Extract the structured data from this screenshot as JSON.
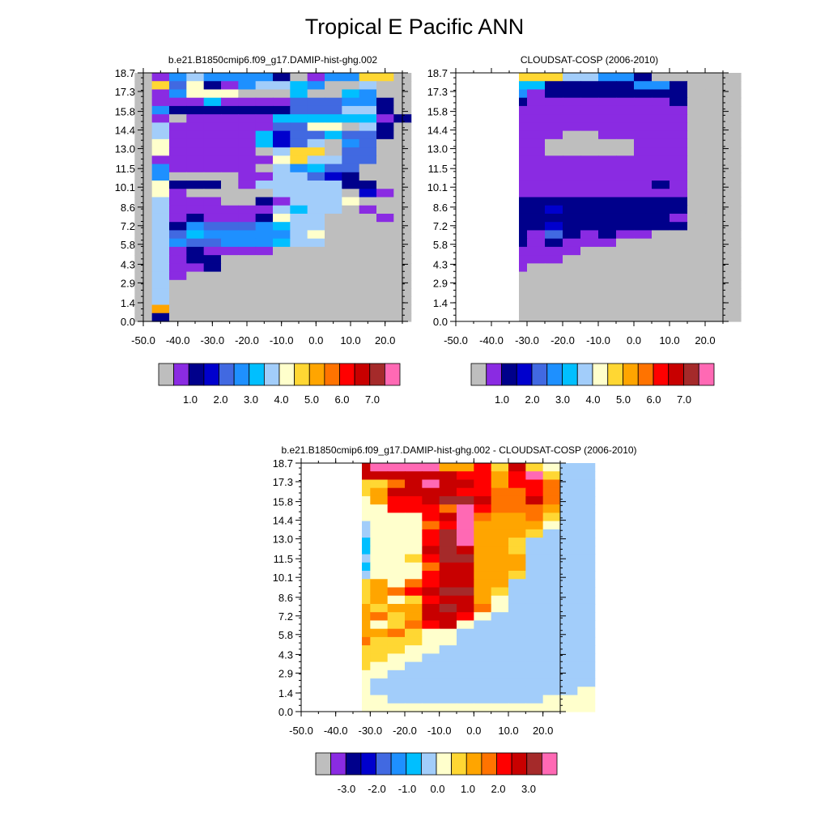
{
  "figure": {
    "title": "Tropical E Pacific ANN"
  },
  "palettes": {
    "main": [
      "#BEBEBE",
      "#8A2BE2",
      "#00008B",
      "#0000CD",
      "#4169E1",
      "#1E90FF",
      "#00BFFF",
      "#A2CDFA",
      "#FFFFCC",
      "#FFD733",
      "#FFA500",
      "#FF7300",
      "#FF0000",
      "#C80000",
      "#A52A2A",
      "#FF69B4"
    ],
    "diff": [
      "#BEBEBE",
      "#8A2BE2",
      "#00008B",
      "#0000CD",
      "#4169E1",
      "#1E90FF",
      "#00BFFF",
      "#A2CDFA",
      "#FFFFCC",
      "#FFD733",
      "#FFA500",
      "#FF7300",
      "#FF0000",
      "#C80000",
      "#A52A2A",
      "#FF69B4"
    ]
  },
  "colorbars": [
    {
      "labels": [
        "1.0",
        "2.0",
        "3.0",
        "4.0",
        "5.0",
        "6.0",
        "7.0"
      ]
    },
    {
      "labels": [
        "1.0",
        "2.0",
        "3.0",
        "4.0",
        "5.0",
        "6.0",
        "7.0"
      ]
    },
    {
      "labels": [
        "-3.0",
        "-2.0",
        "-1.0",
        "0.0",
        "1.0",
        "2.0",
        "3.0"
      ]
    }
  ],
  "chart_data": [
    {
      "type": "heatmap",
      "title": "b.e21.B1850cmip6.f09_g17.DAMIP-hist-ghg.002",
      "x_ticks": [
        "-50.0",
        "-40.0",
        "-30.0",
        "-20.0",
        "-10.0",
        "0.0",
        "10.0",
        "20.0"
      ],
      "y_ticks": [
        "0.0",
        "1.4",
        "2.9",
        "4.3",
        "5.8",
        "7.2",
        "8.6",
        "10.1",
        "11.5",
        "13.0",
        "14.4",
        "15.8",
        "17.3",
        "18.7"
      ],
      "xlim": [
        -50,
        25
      ],
      "ylim": [
        0,
        18.7
      ],
      "x_columns": [
        -50,
        -45,
        -40,
        -35,
        -30,
        -25,
        -20,
        -15,
        -10,
        -5,
        0,
        5,
        10,
        15,
        20,
        25
      ],
      "y_rows": [
        0,
        0.6,
        1.2,
        1.8,
        2.4,
        3.0,
        3.6,
        4.3,
        5.0,
        5.6,
        6.2,
        6.8,
        7.5,
        8.1,
        8.7,
        9.3,
        9.9,
        10.6,
        11.2,
        11.8,
        12.4,
        13.1,
        13.7,
        14.3,
        14.9,
        15.6,
        16.2,
        16.8,
        17.4,
        18.1,
        18.7
      ],
      "cell_color_index": [
        "-15755552015599-",
        "-9482157765007--",
        "-15888000600650-",
        "-11161111444552-",
        "-52222222444772-",
        "-101111166666612",
        "-71111114488072-",
        "-71111163446442-",
        "-8111116347054--",
        "-8111110799044--",
        "-1111111897744--",
        "-511111-75644---",
        "-500--1177432---",
        "-8222-17777722--",
        "-81-----7777-31-",
        "-7111--217778---",
        "-71111117677-1--",
        "-7121112877---1-",
        "-7254445677-----",
        "-7465555578-----",
        "-7544555677-----",
        "-7121111--------",
        "-7122-----------",
        "-7112-----------",
        "-71-------------",
        "-7--------------",
        "-7--------------",
        "-7--------------",
        "-A--------------",
        "-2--------------"
      ]
    },
    {
      "type": "heatmap",
      "title": "CLOUDSAT-COSP (2006-2010)",
      "x_ticks": [
        "-50.0",
        "-40.0",
        "-30.0",
        "-20.0",
        "-10.0",
        "0.0",
        "10.0",
        "20.0"
      ],
      "y_ticks": [
        "0.0",
        "1.4",
        "2.9",
        "4.3",
        "5.8",
        "7.2",
        "8.6",
        "10.1",
        "11.5",
        "13.0",
        "14.4",
        "15.8",
        "17.3",
        "18.7"
      ],
      "xlim": [
        -50,
        25
      ],
      "ylim": [
        0,
        18.7
      ],
      "x_columns": [
        -50,
        -45,
        -40,
        -35,
        -30,
        -25,
        -20,
        -15,
        -10,
        -5,
        0,
        5,
        10,
        15,
        20,
        25
      ],
      "y_rows": [
        0,
        0.6,
        1.2,
        1.8,
        2.4,
        3.0,
        3.6,
        4.3,
        5.0,
        5.6,
        6.2,
        6.8,
        7.5,
        8.1,
        8.7,
        9.3,
        9.9,
        10.6,
        11.2,
        11.8,
        12.4,
        13.1,
        13.7,
        14.3,
        14.9,
        15.6,
        16.2,
        16.8,
        17.4,
        18.1,
        18.7
      ],
      "cell_color_index": [
        "   99977552-----",
        "   6622222552---",
        "   5122222222---",
        "   2111111112---",
        "   1111111111---",
        "   1111111111---",
        "   1111111111---",
        "   1110011111---",
        "   1100000111---",
        "   1100000111---",
        "   1111111111---",
        "   1111111111---",
        "   1111111111---",
        "   1111111121---",
        "   1111111111---",
        "   2222222222---",
        "   2232222222---",
        "   2222222221---",
        "   2232222222---",
        "   21421211-----",
        "   212111-------",
        "   1111---------",
        "   111----------",
        "   1------------",
        "   -------------",
        "   -------------",
        "   -------------",
        "   -------------",
        "   -------------",
        "   -------------"
      ]
    },
    {
      "type": "heatmap",
      "title": "b.e21.B1850cmip6.f09_g17.DAMIP-hist-ghg.002 - CLOUDSAT-COSP (2006-2010)",
      "x_ticks": [
        "-50.0",
        "-40.0",
        "-30.0",
        "-20.0",
        "-10.0",
        "0.0",
        "10.0",
        "20.0"
      ],
      "y_ticks": [
        "0.0",
        "1.4",
        "2.9",
        "4.3",
        "5.8",
        "7.2",
        "8.6",
        "10.1",
        "11.5",
        "13.0",
        "14.4",
        "15.8",
        "17.3",
        "18.7"
      ],
      "xlim": [
        -50,
        25
      ],
      "ylim": [
        0,
        18.7
      ],
      "x_columns": [
        -50,
        -45,
        -40,
        -35,
        -30,
        -25,
        -20,
        -15,
        -10,
        -5,
        0,
        5,
        10,
        15,
        20,
        25
      ],
      "y_rows": [
        0,
        0.6,
        1.2,
        1.8,
        2.4,
        3.0,
        3.6,
        4.3,
        5.0,
        5.6,
        6.2,
        6.8,
        7.5,
        8.1,
        8.7,
        9.3,
        9.9,
        10.6,
        11.2,
        11.8,
        12.4,
        13.1,
        13.7,
        14.3,
        14.9,
        15.6,
        16.2,
        16.8,
        17.4,
        18.1,
        18.7
      ],
      "cell_color_index": [
        "   DFFFFAAC9D9877",
        "   DDDDDDCCACF977",
        "   99BDFDDCACCB778",
        "   9ADDDDCCBBCB778",
        "   8ACCDEEDBBDB778",
        "   88CCCBFCBBBA778",
        "   8888CDFBAAB9778",
        "   7888BCFAAAA8778",
        "   7888CEFAAA97778",
        "   6888CEFAA977778",
        "   6888DEDAA977778",
        "   7889CEEAAA77778",
        "   6888BDDAAA77778",
        "   7888CDDAA977778",
        "   9A8BCDDAA777778",
        "   9ABCDEEA9777778",
        "   9A89CDDA8777778",
        "   A9AADEDB8777778",
        "   AB9ADDC87777778",
        "   A89BCD877777778",
        "   AAB98877777777778",
        "   B9998877777777778",
        "   99988777777777778",
        "   99887777777777778",
        "   98877777777777778",
        "   88777777777777788",
        "   87777777777777888",
        "   87777777777778888",
        "   88777777777888888",
        "   88888888888888888"
      ]
    }
  ]
}
